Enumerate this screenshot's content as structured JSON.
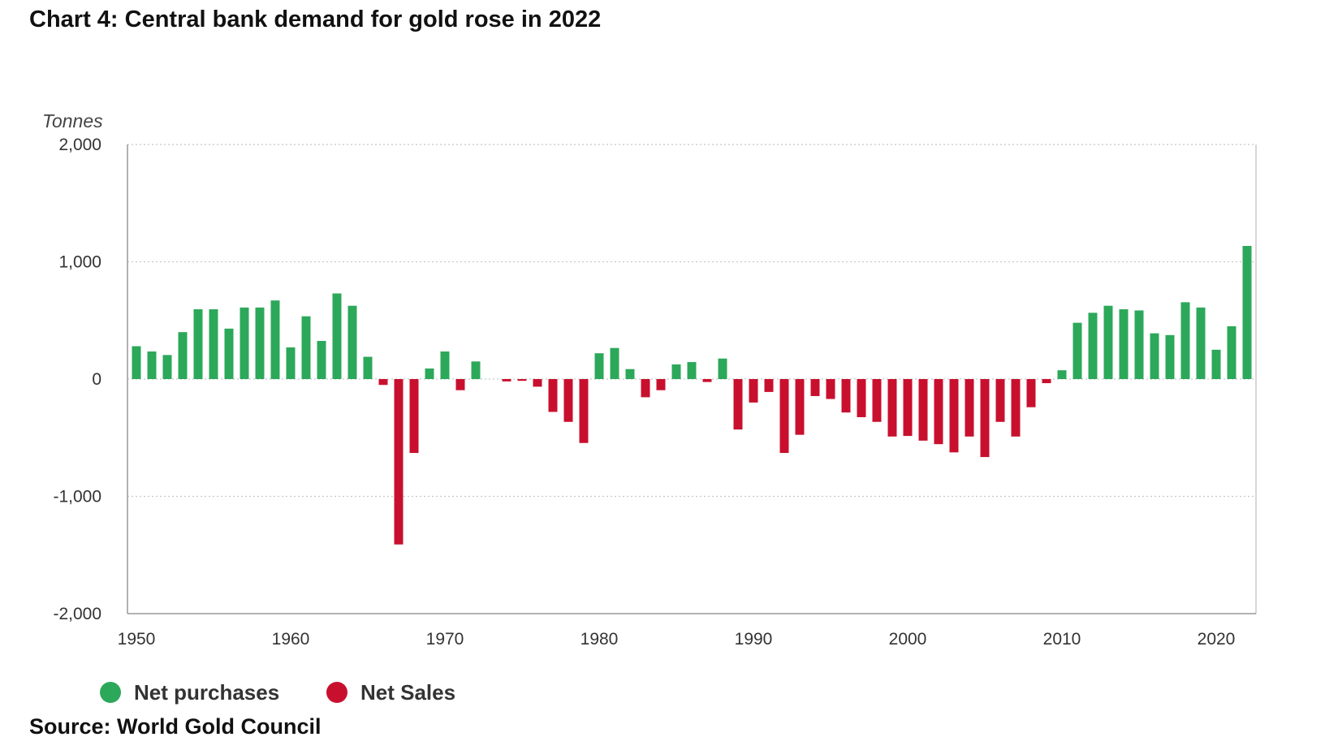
{
  "title": "Chart 4: Central bank demand for gold rose in 2022",
  "source": "Source: World Gold Council",
  "colors": {
    "positive": "#2ca85a",
    "negative": "#c8102e",
    "grid": "#c8c8c8",
    "axis": "#999999"
  },
  "chart_data": {
    "type": "bar",
    "unit_label": "Tonnes",
    "ylim": [
      -2000,
      2000
    ],
    "yticks": [
      2000,
      1000,
      0,
      -1000,
      -2000
    ],
    "ytick_labels": [
      "2,000",
      "1,000",
      "0",
      "-1,000",
      "-2,000"
    ],
    "xticks": [
      1950,
      1960,
      1970,
      1980,
      1990,
      2000,
      2010,
      2020
    ],
    "grid": "horizontal dotted",
    "legend": [
      {
        "name": "Net purchases",
        "color": "#2ca85a"
      },
      {
        "name": "Net Sales",
        "color": "#c8102e"
      }
    ],
    "legend_position": "bottom-left",
    "x": [
      1950,
      1951,
      1952,
      1953,
      1954,
      1955,
      1956,
      1957,
      1958,
      1959,
      1960,
      1961,
      1962,
      1963,
      1964,
      1965,
      1966,
      1967,
      1968,
      1969,
      1970,
      1971,
      1972,
      1973,
      1974,
      1975,
      1976,
      1977,
      1978,
      1979,
      1980,
      1981,
      1982,
      1983,
      1984,
      1985,
      1986,
      1987,
      1988,
      1989,
      1990,
      1991,
      1992,
      1993,
      1994,
      1995,
      1996,
      1997,
      1998,
      1999,
      2000,
      2001,
      2002,
      2003,
      2004,
      2005,
      2006,
      2007,
      2008,
      2009,
      2010,
      2011,
      2012,
      2013,
      2014,
      2015,
      2016,
      2017,
      2018,
      2019,
      2020,
      2021,
      2022
    ],
    "values": [
      280,
      235,
      205,
      400,
      595,
      595,
      430,
      610,
      610,
      670,
      270,
      535,
      325,
      730,
      625,
      190,
      -50,
      -1410,
      -630,
      90,
      235,
      -95,
      150,
      0,
      -20,
      -15,
      -65,
      -280,
      -365,
      -545,
      220,
      265,
      85,
      -155,
      -95,
      125,
      145,
      -25,
      175,
      -430,
      -200,
      -110,
      -630,
      -475,
      -145,
      -170,
      -285,
      -325,
      -365,
      -490,
      -485,
      -525,
      -555,
      -625,
      -490,
      -665,
      -365,
      -490,
      -240,
      -35,
      75,
      480,
      565,
      625,
      595,
      585,
      390,
      375,
      655,
      610,
      250,
      450,
      1135
    ]
  }
}
